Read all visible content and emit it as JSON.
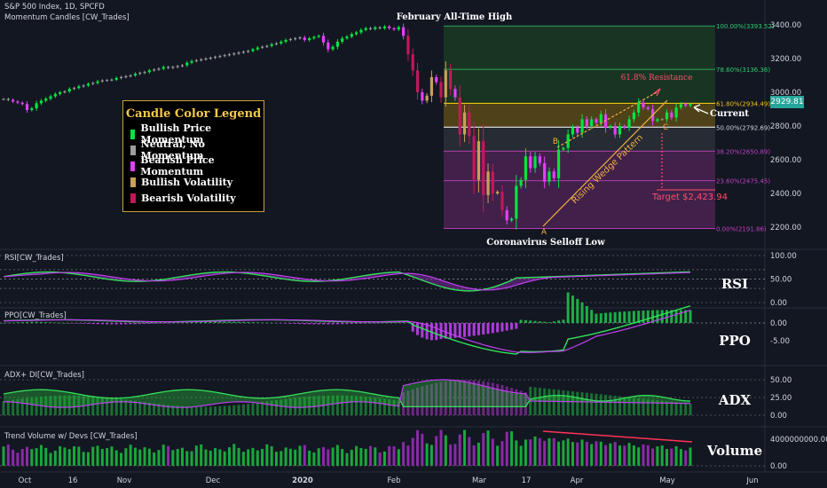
{
  "header": {
    "symbol_line": "S&P 500 Index, 1D, SPCFD",
    "indicator_line": "Momentum Candles [CW_Trades]"
  },
  "legend": {
    "title": "Candle Color Legend",
    "items": [
      {
        "label": "Bullish Price Momentum",
        "color": "#00e640"
      },
      {
        "label": "Neutral, No Momentum",
        "color": "#9e9e9e"
      },
      {
        "label": "Bearish Price Momentum",
        "color": "#e040fb"
      },
      {
        "label": "Bullish Volatility",
        "color": "#c9a05a"
      },
      {
        "label": "Bearish Volatility",
        "color": "#c2185b"
      }
    ]
  },
  "panels": {
    "rsi": {
      "label": "RSI[CW_Trades]",
      "title": "RSI"
    },
    "ppo": {
      "label": "PPO[CW_Trades]",
      "title": "PPO"
    },
    "adx": {
      "label": "ADX+ DI[CW_Trades]",
      "title": "ADX"
    },
    "volume": {
      "label": "Trend Volume w/ Devs [CW_Trades]",
      "title": "Volume"
    }
  },
  "current_price": "2929.81",
  "chart_data": {
    "type": "candlestick",
    "title": "S&P 500 Index, 1D, SPCFD",
    "x_tick_labels": [
      "Oct",
      "16",
      "Nov",
      "Dec",
      "2020",
      "Feb",
      "Mar",
      "17",
      "Apr",
      "May",
      "Jun"
    ],
    "price_axis": {
      "ticks": [
        "3400.00",
        "3200.00",
        "3000.00",
        "2800.00",
        "2600.00",
        "2400.00",
        "2200.00"
      ],
      "range": [
        2150,
        3500
      ]
    },
    "closes": [
      2960,
      2955,
      2945,
      2938,
      2930,
      2895,
      2905,
      2935,
      2950,
      2962,
      2976,
      2990,
      3000,
      3005,
      3020,
      3025,
      3035,
      3040,
      3050,
      3055,
      3065,
      3070,
      3072,
      3075,
      3085,
      3090,
      3095,
      3100,
      3110,
      3115,
      3120,
      3130,
      3135,
      3140,
      3150,
      3145,
      3150,
      3155,
      3160,
      3175,
      3185,
      3190,
      3195,
      3200,
      3205,
      3210,
      3215,
      3220,
      3225,
      3230,
      3235,
      3240,
      3245,
      3255,
      3265,
      3270,
      3275,
      3285,
      3290,
      3300,
      3310,
      3315,
      3320,
      3325,
      3310,
      3320,
      3328,
      3335,
      3295,
      3255,
      3270,
      3300,
      3320,
      3330,
      3345,
      3355,
      3370,
      3380,
      3375,
      3385,
      3380,
      3390,
      3380,
      3373,
      3386,
      3335,
      3225,
      3130,
      3000,
      2950,
      2980,
      3090,
      3060,
      2970,
      3130,
      3020,
      2970,
      2750,
      2880,
      2740,
      2480,
      2710,
      2390,
      2530,
      2400,
      2410,
      2300,
      2240,
      2250,
      2445,
      2480,
      2620,
      2550,
      2620,
      2580,
      2470,
      2530,
      2490,
      2660,
      2670,
      2750,
      2790,
      2760,
      2840,
      2800,
      2840,
      2820,
      2870,
      2790,
      2800,
      2750,
      2800,
      2790,
      2840,
      2880,
      2940,
      2910,
      2900,
      2830,
      2840,
      2840,
      2880,
      2850,
      2910,
      2930,
      2920,
      2930
    ],
    "fibonacci": [
      {
        "label": "100.00%(3393.52)",
        "value": 3393.52
      },
      {
        "label": "78.60%(3136.36)",
        "value": 3136.36
      },
      {
        "label": "61.80%(2934.49)",
        "value": 2934.49
      },
      {
        "label": "50.00%(2792.69)",
        "value": 2792.69
      },
      {
        "label": "38.20%(2650.89)",
        "value": 2650.89
      },
      {
        "label": "23.60%(2475.45)",
        "value": 2475.45
      },
      {
        "label": "0.00%(2191.86)",
        "value": 2191.86
      }
    ],
    "annotations": {
      "high": "February All-Time High",
      "low": "Coronavirus Selloff Low",
      "resistance": "61.8% Resistance",
      "current": "Current",
      "wedge": "Rising Wedge Pattern",
      "target": "Target $2,423.94",
      "point_a": "A",
      "point_b": "B",
      "point_c": "C"
    },
    "rsi_axis": [
      "100.00",
      "50.00",
      "0.00"
    ],
    "ppo_axis": [
      "0.00",
      "-5.00"
    ],
    "adx_axis": [
      "50.00",
      "25.00",
      "0.00"
    ],
    "volume_axis": [
      "4000000000.00",
      "0.00"
    ]
  }
}
